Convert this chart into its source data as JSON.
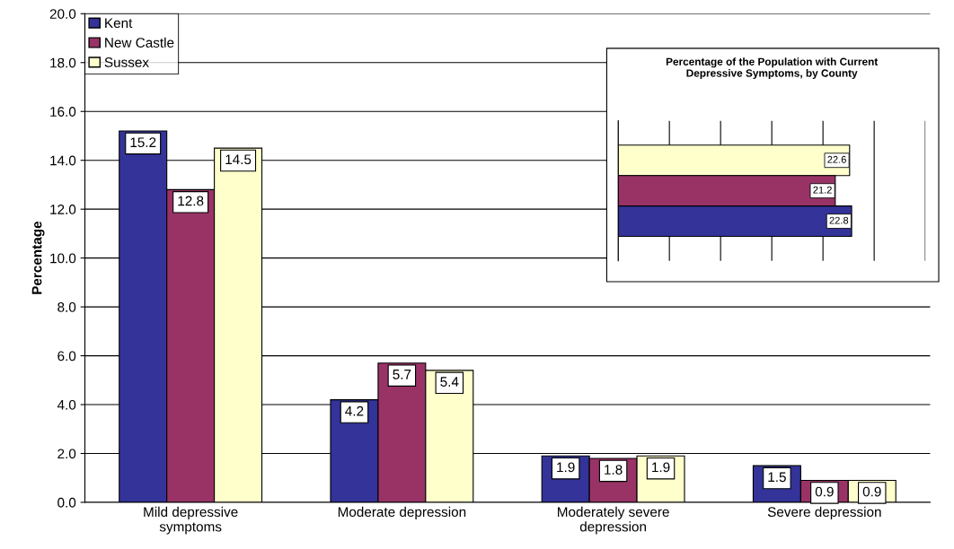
{
  "chart_data": [
    {
      "type": "bar",
      "ylabel": "Percentage",
      "categories": [
        "Mild depressive\nsymptoms",
        "Moderate depression",
        "Moderately severe\ndepression",
        "Severe depression"
      ],
      "series": [
        {
          "name": "Kent",
          "color": "#333399",
          "values": [
            15.2,
            4.2,
            1.9,
            1.5
          ]
        },
        {
          "name": "New Castle",
          "color": "#993366",
          "values": [
            12.8,
            5.7,
            1.8,
            0.9
          ]
        },
        {
          "name": "Sussex",
          "color": "#ffffcc",
          "values": [
            14.5,
            5.4,
            1.9,
            0.9
          ]
        }
      ],
      "ylim": [
        0,
        20
      ],
      "yticks": [
        {
          "value": 0,
          "label": "0.0"
        },
        {
          "value": 2,
          "label": "2.0"
        },
        {
          "value": 4,
          "label": "4.0"
        },
        {
          "value": 6,
          "label": "6.0"
        },
        {
          "value": 8,
          "label": "8.0"
        },
        {
          "value": 10,
          "label": "10.0"
        },
        {
          "value": 12,
          "label": "12.0"
        },
        {
          "value": 14,
          "label": "14.0"
        },
        {
          "value": 16,
          "label": "16.0"
        },
        {
          "value": 18,
          "label": "18.0"
        },
        {
          "value": 20,
          "label": "20.0"
        }
      ],
      "grid": "y",
      "legend": "top left",
      "data_labels": true
    },
    {
      "type": "bar",
      "orientation": "horizontal",
      "title": "Percentage of the Population with Current\nDepressive Symptoms, by County",
      "categories": [
        null,
        null,
        null
      ],
      "values": [
        22.6,
        21.2,
        22.8
      ],
      "colors": [
        "#ffffcc",
        "#993366",
        "#333399"
      ],
      "xlim": [
        0,
        30
      ],
      "xticks": [
        {
          "value": 0,
          "label": null
        },
        {
          "value": 5,
          "label": null
        },
        {
          "value": 10,
          "label": null
        },
        {
          "value": 15,
          "label": null
        },
        {
          "value": 20,
          "label": null
        },
        {
          "value": 25,
          "label": null
        },
        {
          "value": 30,
          "label": null
        }
      ],
      "grid": "x",
      "data_labels": true
    }
  ]
}
